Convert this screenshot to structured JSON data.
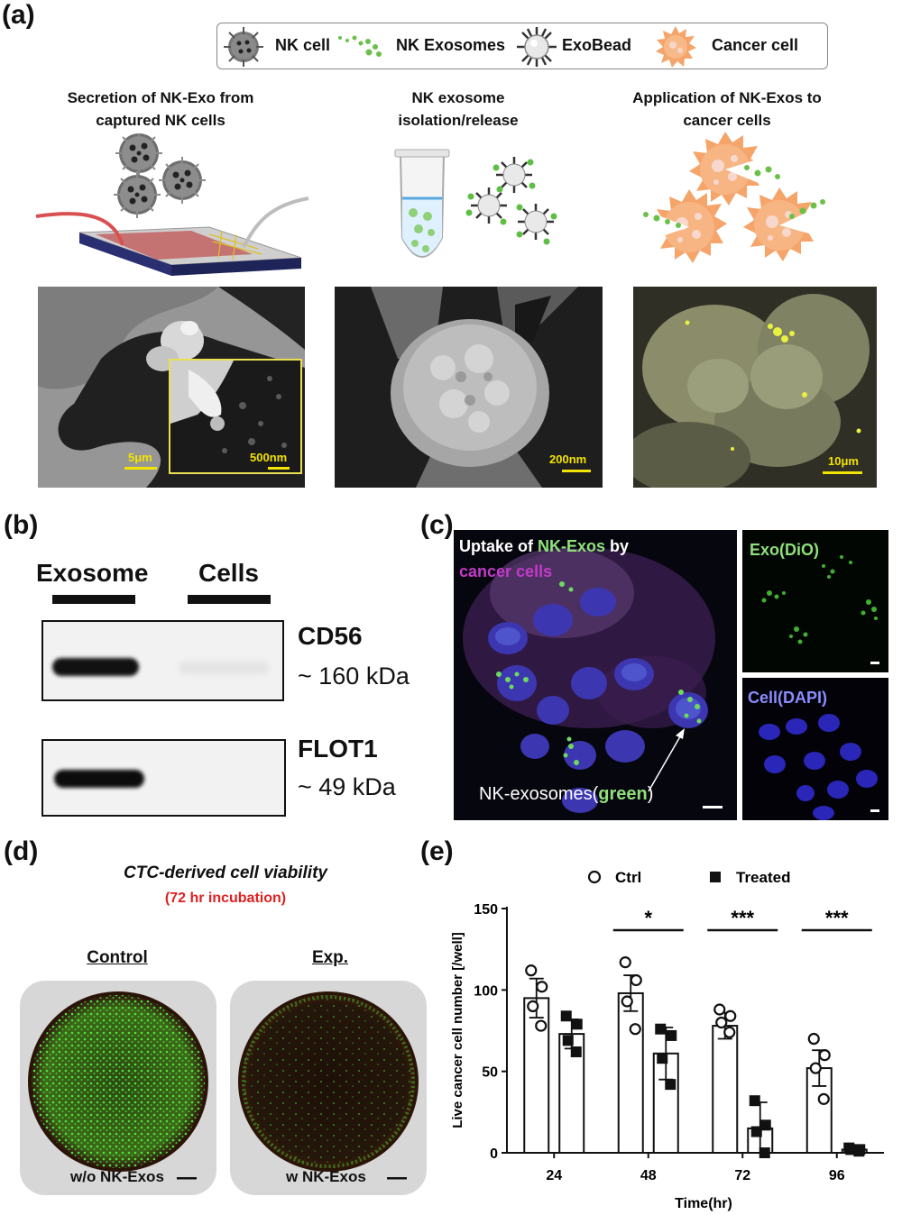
{
  "labels": {
    "a": "(a)",
    "b": "(b)",
    "c": "(c)",
    "d": "(d)",
    "e": "(e)"
  },
  "legend": {
    "items": [
      {
        "label": "NK cell",
        "icon": "nk-cell-icon"
      },
      {
        "label": "NK Exosomes",
        "icon": "nk-exosome-icon"
      },
      {
        "label": "ExoBead",
        "icon": "exobead-icon"
      },
      {
        "label": "Cancer cell",
        "icon": "cancer-cell-icon"
      }
    ]
  },
  "panel_a": {
    "steps": [
      {
        "line1": "Secretion of NK-Exo from",
        "line2": "captured NK cells"
      },
      {
        "line1": "NK exosome",
        "line2": "isolation/release"
      },
      {
        "line1": "Application of NK-Exos to",
        "line2": "cancer cells"
      }
    ],
    "scales": {
      "sem1": "5μm",
      "sem1_inset": "500nm",
      "sem2": "200nm",
      "confocal": "10μm"
    },
    "colors": {
      "scale": "#f2e300",
      "nk_cell": "#6e6e6e",
      "exosome": "#6cc04a",
      "cancer_cell": "#f5a46a"
    }
  },
  "panel_b": {
    "headers": [
      "Exosome",
      "Cells"
    ],
    "bands": [
      {
        "name": "CD56",
        "kda": "~ 160 kDa"
      },
      {
        "name": "FLOT1",
        "kda": "~ 49 kDa"
      }
    ]
  },
  "panel_c": {
    "title_part1": "Uptake of ",
    "title_part2": "NK-Exos",
    "title_part3": " by",
    "title_part4": "cancer cells",
    "exo_label": "Exo(DiO)",
    "cell_label": "Cell(DAPI)",
    "arrow_part1": "NK-exosomes(",
    "arrow_part2": "green",
    "arrow_part3": ")",
    "colors": {
      "exo": "#8fe07a",
      "cancer": "#c43ac8",
      "dapi": "#8c8cff"
    }
  },
  "panel_d": {
    "title": "CTC-derived cell viability",
    "subtitle": "(72 hr incubation)",
    "control_header": "Control",
    "exp_header": "Exp.",
    "control_caption": "w/o NK-Exos",
    "exp_caption": "w NK-Exos",
    "colors": {
      "subtitle": "#e02020",
      "cells": "#44d030"
    }
  },
  "chart_data": {
    "type": "bar",
    "categories": [
      "24",
      "48",
      "72",
      "96"
    ],
    "xlabel": "Time(hr)",
    "ylabel": "Live cancer cell number [/well]",
    "ylim": [
      0,
      150
    ],
    "yticks": [
      0,
      50,
      100,
      150
    ],
    "legend_position": "top",
    "series": [
      {
        "name": "Ctrl",
        "marker": "open-circle",
        "values": [
          95,
          98,
          78,
          52
        ],
        "errors": [
          12,
          11,
          8,
          11
        ],
        "points": [
          [
            112,
            102,
            90,
            78
          ],
          [
            117,
            106,
            93,
            76
          ],
          [
            88,
            84,
            80,
            74
          ],
          [
            70,
            60,
            52,
            33
          ]
        ]
      },
      {
        "name": "Treated",
        "marker": "filled-square",
        "values": [
          73,
          61,
          15,
          2
        ],
        "errors": [
          9,
          16,
          16,
          1
        ],
        "points": [
          [
            84,
            79,
            69,
            62
          ],
          [
            76,
            72,
            58,
            42
          ],
          [
            32,
            17,
            13,
            0
          ],
          [
            3,
            2,
            2,
            1
          ]
        ]
      }
    ],
    "significance": [
      {
        "category": "48",
        "label": "*"
      },
      {
        "category": "72",
        "label": "***"
      },
      {
        "category": "96",
        "label": "***"
      }
    ]
  }
}
